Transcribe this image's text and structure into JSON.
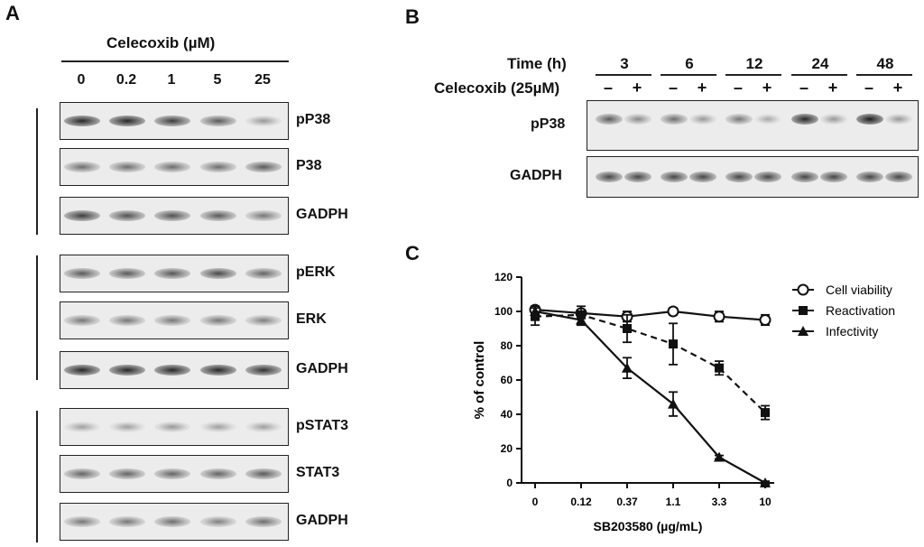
{
  "panels": {
    "a": "A",
    "b": "B",
    "c": "C"
  },
  "panel_a": {
    "treatment": "Celecoxib (µM)",
    "doses": [
      "0",
      "0.2",
      "1",
      "5",
      "25"
    ],
    "blots": [
      {
        "label": "pP38",
        "intensity": [
          0.95,
          0.95,
          0.85,
          0.7,
          0.35
        ]
      },
      {
        "label": "P38",
        "intensity": [
          0.6,
          0.6,
          0.6,
          0.6,
          0.7
        ]
      },
      {
        "label": "GADPH",
        "intensity": [
          0.85,
          0.75,
          0.75,
          0.7,
          0.55
        ]
      },
      {
        "label": "pERK",
        "intensity": [
          0.7,
          0.7,
          0.72,
          0.78,
          0.65
        ]
      },
      {
        "label": "ERK",
        "intensity": [
          0.55,
          0.55,
          0.55,
          0.55,
          0.5
        ]
      },
      {
        "label": "GADPH",
        "intensity": [
          0.95,
          0.95,
          0.95,
          0.95,
          0.9
        ]
      },
      {
        "label": "pSTAT3",
        "intensity": [
          0.3,
          0.3,
          0.35,
          0.3,
          0.3
        ]
      },
      {
        "label": "STAT3",
        "intensity": [
          0.65,
          0.65,
          0.65,
          0.65,
          0.7
        ]
      },
      {
        "label": "GADPH",
        "intensity": [
          0.55,
          0.55,
          0.6,
          0.5,
          0.6
        ]
      }
    ]
  },
  "panel_b": {
    "time_label": "Time (h)",
    "times": [
      "3",
      "6",
      "12",
      "24",
      "48"
    ],
    "treatment_label": "Celecoxib (25µM)",
    "signs": [
      "–",
      "+",
      "–",
      "+",
      "–",
      "+",
      "–",
      "+",
      "–",
      "+"
    ],
    "blots": [
      {
        "label": "pP38",
        "intensity": [
          0.7,
          0.45,
          0.6,
          0.35,
          0.55,
          0.25,
          0.95,
          0.35,
          1.0,
          0.35
        ]
      },
      {
        "label": "GADPH",
        "intensity": [
          0.8,
          0.8,
          0.8,
          0.8,
          0.8,
          0.8,
          0.8,
          0.8,
          0.8,
          0.8
        ]
      }
    ]
  },
  "chart_data": {
    "type": "line",
    "title": "",
    "xlabel": "SB203580 (µg/mL)",
    "ylabel": "% of control",
    "categories": [
      "0",
      "0.12",
      "0.37",
      "1.1",
      "3.3",
      "10"
    ],
    "ylim": [
      0,
      120
    ],
    "yticks": [
      "0",
      "20",
      "40",
      "60",
      "80",
      "100",
      "120"
    ],
    "legend_position": "top-right",
    "series": [
      {
        "name": "Cell viability",
        "marker": "open-circle",
        "style": "solid",
        "values": [
          101,
          99,
          97,
          100,
          97,
          95
        ],
        "errors": [
          2,
          2,
          3,
          2,
          3,
          3
        ]
      },
      {
        "name": "Reactivation",
        "marker": "square",
        "style": "dashed",
        "values": [
          97,
          98,
          90,
          81,
          67,
          41
        ],
        "errors": [
          5,
          5,
          8,
          12,
          4,
          4
        ]
      },
      {
        "name": "Infectivity",
        "marker": "triangle",
        "style": "solid",
        "values": [
          100,
          95,
          67,
          46,
          15,
          0
        ],
        "errors": [
          3,
          3,
          6,
          7,
          1,
          1
        ]
      }
    ]
  }
}
